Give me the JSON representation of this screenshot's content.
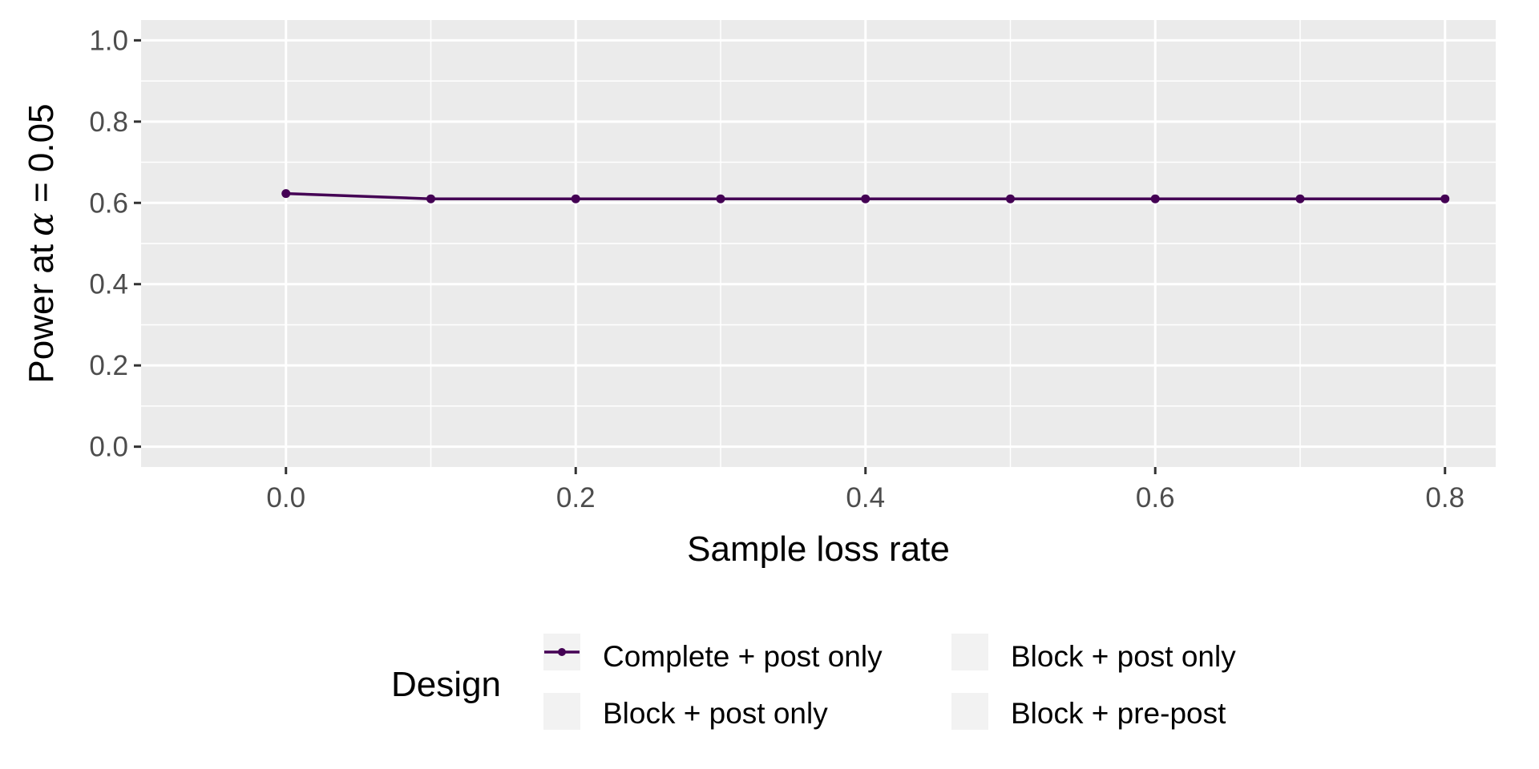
{
  "chart_data": {
    "type": "line",
    "xlabel": "Sample loss rate",
    "ylabel_prefix": "Power at",
    "ylabel_symbol": "α",
    "ylabel_suffix": " = 0.05",
    "xlim": [
      -0.1,
      0.835
    ],
    "ylim": [
      -0.05,
      1.05
    ],
    "x_ticks": [
      0.0,
      0.2,
      0.4,
      0.6,
      0.8
    ],
    "x_tick_labels": [
      "0.0",
      "0.2",
      "0.4",
      "0.6",
      "0.8"
    ],
    "x_minor_ticks": [
      0.1,
      0.3,
      0.5,
      0.7
    ],
    "y_ticks": [
      0.0,
      0.2,
      0.4,
      0.6,
      0.8,
      1.0
    ],
    "y_tick_labels": [
      "0.0",
      "0.2",
      "0.4",
      "0.6",
      "0.8",
      "1.0"
    ],
    "y_minor_ticks": [
      0.1,
      0.3,
      0.5,
      0.7,
      0.9
    ],
    "grid": true,
    "legend_position": "bottom",
    "legend_title": "Design",
    "legend_entries": [
      {
        "label": "Complete + post only",
        "color": "#440154",
        "shown": true
      },
      {
        "label": "Block + post only",
        "color": "",
        "shown": false
      },
      {
        "label": "Block + post only",
        "color": "",
        "shown": false
      },
      {
        "label": "Block + pre-post",
        "color": "",
        "shown": false
      }
    ],
    "series": [
      {
        "name": "Complete + post only",
        "color": "#440154",
        "x": [
          0.0,
          0.1,
          0.2,
          0.3,
          0.4,
          0.5,
          0.6,
          0.7,
          0.8
        ],
        "y": [
          0.623,
          0.61,
          0.61,
          0.61,
          0.61,
          0.61,
          0.61,
          0.61,
          0.61
        ]
      }
    ]
  }
}
